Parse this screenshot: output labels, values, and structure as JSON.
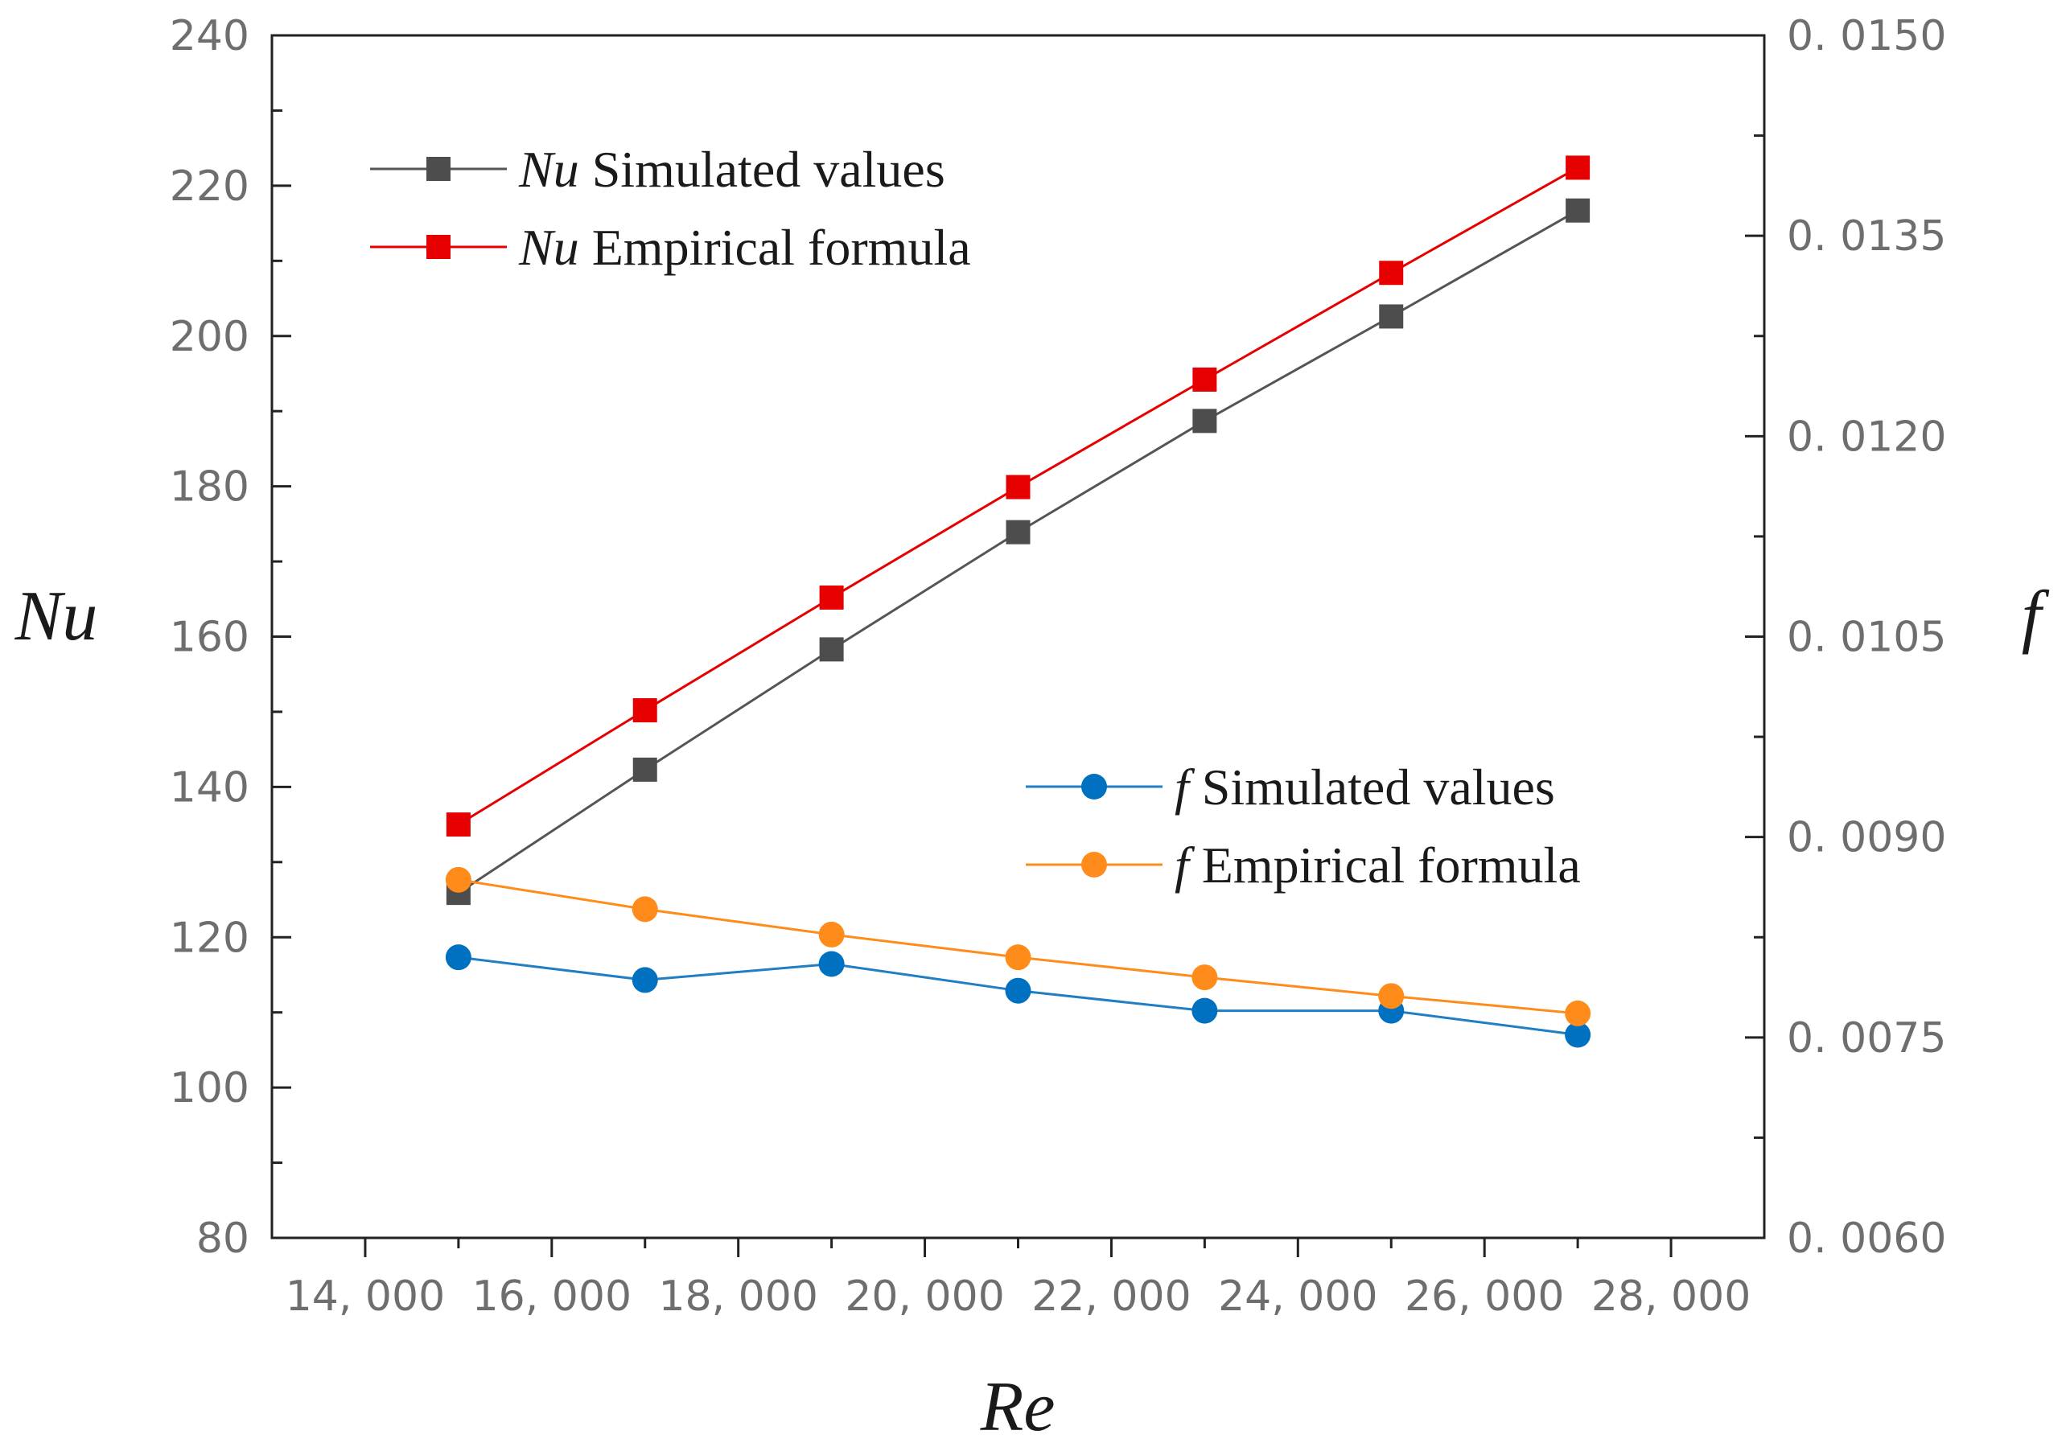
{
  "chart_data": {
    "type": "line",
    "x": [
      15000,
      17000,
      19000,
      21000,
      23000,
      25000,
      27000
    ],
    "xlabel": "Re",
    "ylabel_left": "Nu",
    "ylabel_right": "f",
    "xlim": [
      13000,
      29000
    ],
    "ylim_left": [
      80,
      240
    ],
    "ylim_right": [
      0.006,
      0.015
    ],
    "xticks": [
      14000,
      16000,
      18000,
      20000,
      22000,
      24000,
      26000,
      28000
    ],
    "xtick_labels": [
      "14, 000",
      "16, 000",
      "18, 000",
      "20, 000",
      "22, 000",
      "24, 000",
      "26, 000",
      "28, 000"
    ],
    "yticks_left": [
      80,
      100,
      120,
      140,
      160,
      180,
      200,
      220,
      240
    ],
    "ytick_labels_left": [
      "80",
      "100",
      "120",
      "140",
      "160",
      "180",
      "200",
      "220",
      "240"
    ],
    "yticks_right": [
      0.006,
      0.0075,
      0.009,
      0.0105,
      0.012,
      0.0135,
      0.015
    ],
    "ytick_labels_right": [
      "0. 0060",
      "0. 0075",
      "0. 0090",
      "0. 0105",
      "0. 0120",
      "0. 0135",
      "0. 0150"
    ],
    "series": [
      {
        "name": "Nu Simulated values",
        "symbol": "Nu",
        "label": "Simulated values",
        "axis": "left",
        "marker": "square",
        "color": "#4d4d4d",
        "line_color": "#555555",
        "values": [
          125.9,
          142.3,
          158.3,
          173.9,
          188.7,
          202.6,
          216.7
        ]
      },
      {
        "name": "Nu Empirical formula",
        "symbol": "Nu",
        "label": "Empirical formula",
        "axis": "left",
        "marker": "square",
        "color": "#e60000",
        "line_color": "#e60000",
        "values": [
          135.0,
          150.2,
          165.2,
          179.9,
          194.2,
          208.4,
          222.4
        ]
      },
      {
        "name": "f Simulated values",
        "symbol": "f",
        "label": "Simulated values",
        "axis": "right",
        "marker": "circle",
        "color": "#0070c0",
        "line_color": "#1f7ec4",
        "values": [
          0.0081,
          0.00793,
          0.00805,
          0.00785,
          0.0077,
          0.0077,
          0.00752
        ]
      },
      {
        "name": "f Empirical formula",
        "symbol": "f",
        "label": "Empirical formula",
        "axis": "right",
        "marker": "circle",
        "color": "#ff8c1a",
        "line_color": "#ff8c1a",
        "values": [
          0.00868,
          0.00846,
          0.00827,
          0.0081,
          0.00795,
          0.00781,
          0.00768
        ]
      }
    ],
    "legends": [
      {
        "position": "top-left",
        "series": [
          0,
          1
        ]
      },
      {
        "position": "center-right",
        "series": [
          2,
          3
        ]
      }
    ]
  }
}
